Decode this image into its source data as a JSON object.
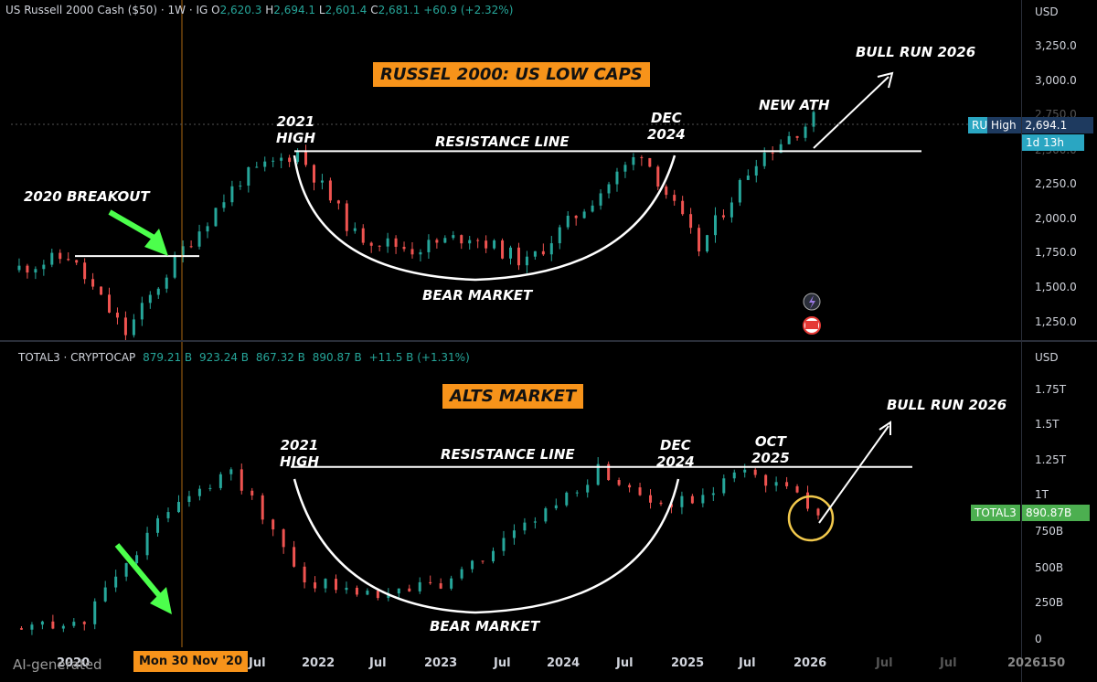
{
  "top_pane": {
    "legend": {
      "symbol": "US Russell 2000 Cash ($50)",
      "interval": "1W",
      "source": "IG",
      "o_label": "O",
      "o": "2,620.3",
      "h_label": "H",
      "h": "2,694.1",
      "l_label": "L",
      "l": "2,601.4",
      "c_label": "C",
      "c": "2,681.1",
      "change": "+60.9 (+2.32%)"
    },
    "currency": "USD",
    "banner": "RUSSEL 2000: US LOW CAPS",
    "annotations": {
      "breakout": "2020 BREAKOUT",
      "high_2021_a": "2021",
      "high_2021_b": "HIGH",
      "resistance": "RESISTANCE LINE",
      "dec_a": "DEC",
      "dec_b": "2024",
      "new_ath": "NEW ATH",
      "bull_run": "BULL RUN 2026",
      "bear_market": "BEAR MARKET"
    },
    "badge": {
      "symbol": "RU",
      "high_label": "High",
      "high_value": "2,694.1",
      "countdown": "1d 13h"
    },
    "y_ticks": [
      "3,250.0",
      "3,000.0",
      "2,750.0",
      "2,500.0",
      "2,250.0",
      "2,000.0",
      "1,750.0",
      "1,500.0",
      "1,250.0"
    ]
  },
  "bottom_pane": {
    "legend": {
      "symbol": "TOTAL3 · CRYPTOCAP",
      "o": "879.21 B",
      "h": "923.24 B",
      "l": "867.32 B",
      "c": "890.87 B",
      "change": "+11.5 B (+1.31%)"
    },
    "currency": "USD",
    "banner": "ALTS MARKET",
    "annotations": {
      "high_2021_a": "2021",
      "high_2021_b": "HIGH",
      "resistance": "RESISTANCE LINE",
      "dec_a": "DEC",
      "dec_b": "2024",
      "oct_a": "OCT",
      "oct_b": "2025",
      "bull_run": "BULL RUN 2026",
      "bear_market": "BEAR MARKET"
    },
    "badge": {
      "symbol": "TOTAL3",
      "value": "890.87B"
    },
    "y_ticks": [
      "1.75T",
      "1.5T",
      "1.25T",
      "1T",
      "750B",
      "500B",
      "250B",
      "0"
    ]
  },
  "x_axis": {
    "labels": [
      "2020",
      "Jul",
      "2022",
      "Jul",
      "2023",
      "Jul",
      "2024",
      "Jul",
      "2025",
      "Jul",
      "2026",
      "Jul",
      "Jul",
      "2026"
    ],
    "label_suffix": "150",
    "cursor_date": "Mon 30 Nov '20"
  },
  "watermark": "AI-generated",
  "colors": {
    "up": "#26a69a",
    "down": "#ef5350",
    "accent": "#f7931a",
    "green_arrow": "#4cff4c",
    "circle": "#f2c94c"
  },
  "chart_data": [
    {
      "type": "candlestick",
      "title": "US Russell 2000 Cash ($50)",
      "interval": "1W",
      "x": [
        "2019-Q3",
        "2020-Q1",
        "2020-Q2",
        "2020-Q4",
        "2021-Q1",
        "2021-Q4",
        "2022-Q2",
        "2022-Q3",
        "2023-Q1",
        "2023-Q4",
        "2024-Q2",
        "2024-Q4",
        "2025-Q2",
        "2025-Q4",
        "2026-Q1"
      ],
      "close": [
        1600,
        1700,
        1150,
        1750,
        2250,
        2450,
        1850,
        1750,
        1850,
        1650,
        2050,
        2450,
        1750,
        2400,
        2681.1
      ],
      "resistance_level": 2450,
      "breakout_level": 1700,
      "ylim": [
        1100,
        3400
      ],
      "grid": false
    },
    {
      "type": "candlestick",
      "title": "TOTAL3 · CRYPTOCAP",
      "x": [
        "2019-Q3",
        "2020-Q4",
        "2021-Q2",
        "2021-Q4",
        "2022-Q2",
        "2023-Q1",
        "2023-Q4",
        "2024-Q1",
        "2024-Q4",
        "2025-Q2",
        "2025-Q4",
        "2026-Q1"
      ],
      "close": [
        80,
        150,
        800,
        1150,
        400,
        320,
        400,
        750,
        1150,
        900,
        1150,
        890.87
      ],
      "resistance_level": 1150,
      "ylim": [
        0,
        1900
      ],
      "grid": false
    }
  ]
}
